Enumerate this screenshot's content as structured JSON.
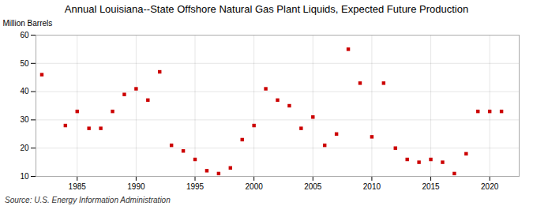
{
  "chart_data": {
    "type": "scatter",
    "title": "Annual Louisiana--State Offshore Natural Gas Plant Liquids, Expected Future Production",
    "ylabel": "Million Barrels",
    "source": "Source: U.S. Energy Information Administration",
    "x": [
      1982,
      1984,
      1985,
      1986,
      1987,
      1988,
      1989,
      1990,
      1991,
      1992,
      1993,
      1994,
      1995,
      1996,
      1997,
      1998,
      1999,
      2000,
      2001,
      2002,
      2003,
      2004,
      2005,
      2006,
      2007,
      2008,
      2009,
      2010,
      2011,
      2012,
      2013,
      2014,
      2015,
      2016,
      2017,
      2018,
      2019,
      2020,
      2021
    ],
    "values": [
      46,
      28,
      33,
      27,
      27,
      33,
      39,
      41,
      37,
      47,
      21,
      19,
      16,
      12,
      11,
      13,
      23,
      28,
      41,
      37,
      35,
      27,
      31,
      21,
      25,
      55,
      43,
      24,
      43,
      20,
      16,
      15,
      16,
      15,
      11,
      18,
      33,
      33,
      33
    ],
    "color": "#cc0000",
    "marker": "square",
    "xlim": [
      1981.5,
      2022.5
    ],
    "ylim": [
      10,
      60
    ],
    "xticks": [
      1985,
      1990,
      1995,
      2000,
      2005,
      2010,
      2015,
      2020
    ],
    "yticks": [
      10,
      20,
      30,
      40,
      50,
      60
    ],
    "grid": true
  }
}
